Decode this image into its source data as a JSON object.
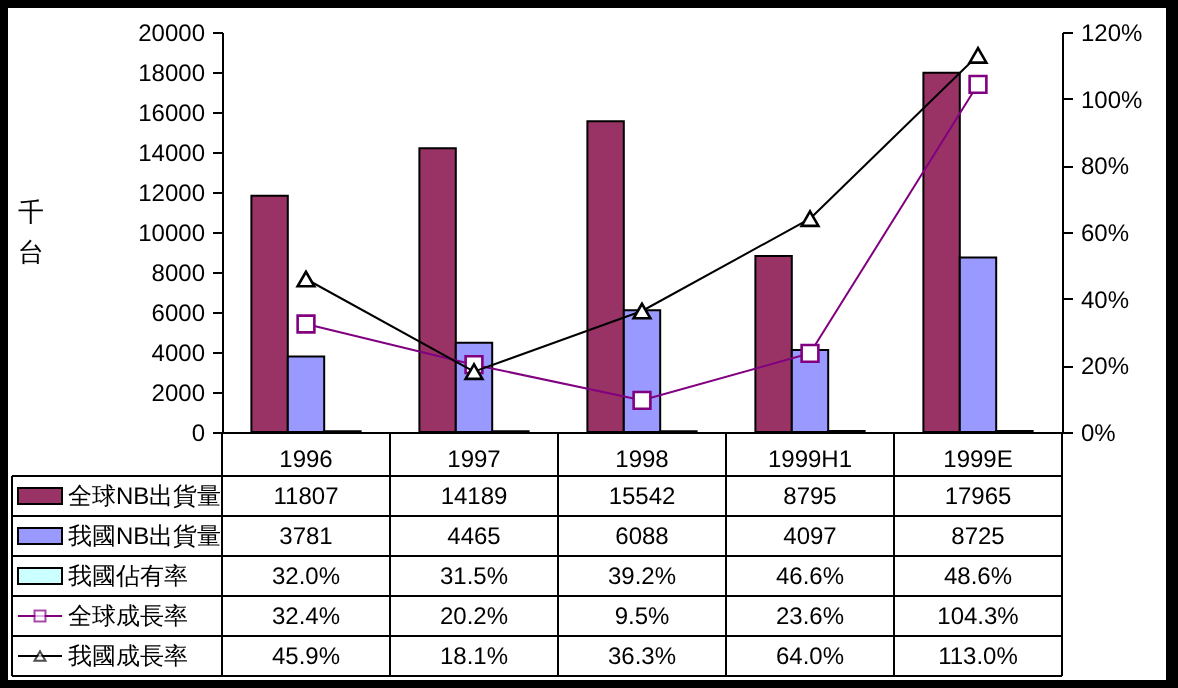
{
  "chart_data": {
    "type": "bar",
    "ylabel": "千台",
    "categories": [
      "1996",
      "1997",
      "1998",
      "1999H1",
      "1999E"
    ],
    "ylim": [
      0,
      20000
    ],
    "yticks": [
      0,
      2000,
      4000,
      6000,
      8000,
      10000,
      12000,
      14000,
      16000,
      18000,
      20000
    ],
    "y2lim": [
      0,
      120
    ],
    "y2ticks": [
      {
        "value": 0,
        "label": "0%"
      },
      {
        "value": 20,
        "label": "20%"
      },
      {
        "value": 40,
        "label": "40%"
      },
      {
        "value": 60,
        "label": "60%"
      },
      {
        "value": 80,
        "label": "80%"
      },
      {
        "value": 100,
        "label": "100%"
      },
      {
        "value": 120,
        "label": "120%"
      }
    ],
    "legend": "bottom",
    "series": [
      {
        "name": "全球NB出貨量",
        "color": "#993366",
        "values": [
          11807,
          14189,
          15542,
          8795,
          17965
        ],
        "value_labels": [
          "11807",
          "14189",
          "15542",
          "8795",
          "17965"
        ]
      },
      {
        "name": "我國NB出貨量",
        "color": "#9999ff",
        "values": [
          3781,
          4465,
          6088,
          4097,
          8725
        ],
        "value_labels": [
          "3781",
          "4465",
          "6088",
          "4097",
          "8725"
        ]
      },
      {
        "name": "我國佔有率",
        "color": "#ccffff",
        "values": [
          32.0,
          31.5,
          39.2,
          46.6,
          48.6
        ],
        "value_labels": [
          "32.0%",
          "31.5%",
          "39.2%",
          "46.6%",
          "48.6%"
        ]
      },
      {
        "name": "全球成長率",
        "type": "line",
        "axis": "y2",
        "color": "#800080",
        "marker": "square",
        "values": [
          32.4,
          20.2,
          9.5,
          23.6,
          104.3
        ],
        "value_labels": [
          "32.4%",
          "20.2%",
          "9.5%",
          "23.6%",
          "104.3%"
        ]
      },
      {
        "name": "我國成長率",
        "type": "line",
        "axis": "y2",
        "color": "#000000",
        "marker": "triangle",
        "values": [
          45.9,
          18.1,
          36.3,
          64.0,
          113.0
        ],
        "value_labels": [
          "45.9%",
          "18.1%",
          "36.3%",
          "64.0%",
          "113.0%"
        ]
      }
    ]
  }
}
